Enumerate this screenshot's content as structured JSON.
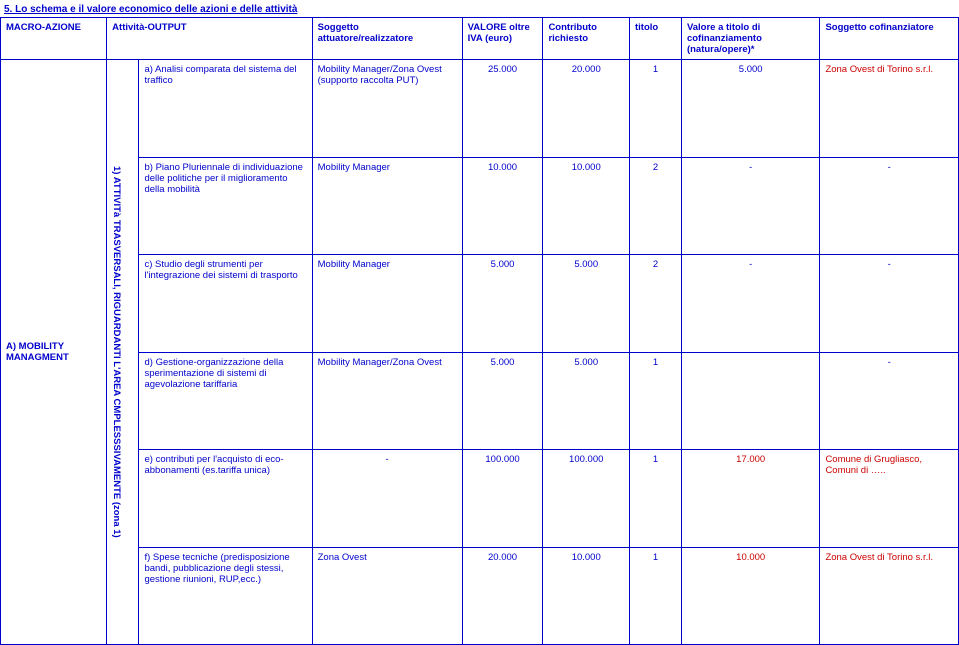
{
  "section_title": "5. Lo schema e il valore economico delle azioni e delle attività",
  "colors": {
    "text": "#0000CC",
    "accent_red": "#CC0000",
    "border": "#0000CC",
    "background": "#ffffff"
  },
  "headers": {
    "macro": "MACRO-AZIONE",
    "attivita": "Attività-OUTPUT",
    "soggetto_att": "Soggetto attuatore/realizzatore",
    "valore": "VALORE oltre IVA (euro)",
    "contributo": "Contributo richiesto",
    "titolo": "titolo",
    "valore_cofin": "Valore a titolo di cofinanziamento (natura/opere)*",
    "soggetto_cofin": "Soggetto cofinanziatore"
  },
  "macro_label": "A) MOBILITY MANAGMENT",
  "side_label": "1) ATTIVITà TRASVERSALI, RIGUARDANTI L'AREA CMPLESSSIVAMENTE (zona 1)",
  "rows": [
    {
      "activity": "a) Analisi comparata del sistema del traffico",
      "subject": "Mobility Manager/Zona Ovest (supporto raccolta PUT)",
      "valore": "25.000",
      "contributo": "20.000",
      "titolo": "1",
      "cofin": "5.000",
      "cofin_sog": "Zona Ovest di Torino s.r.l.",
      "cofin_red": true
    },
    {
      "activity": "b) Piano Pluriennale di individuazione delle politiche per il miglioramento della mobilità",
      "subject": "Mobility Manager",
      "valore": "10.000",
      "contributo": "10.000",
      "titolo": "2",
      "cofin": "-",
      "cofin_sog": "-",
      "cofin_red": false
    },
    {
      "activity": "c) Studio degli strumenti per l'integrazione dei sistemi di trasporto",
      "subject": "Mobility Manager",
      "valore": "5.000",
      "contributo": "5.000",
      "titolo": "2",
      "cofin": "-",
      "cofin_sog": "-",
      "cofin_red": false
    },
    {
      "activity": "d) Gestione-organizzazione della sperimentazione di sistemi di agevolazione tariffaria",
      "subject": "Mobility Manager/Zona Ovest",
      "valore": "5.000",
      "contributo": "5.000",
      "titolo": "1",
      "cofin": "",
      "cofin_sog": "-",
      "cofin_red": false
    },
    {
      "activity": "e) contributi per l'acquisto di eco-abbonamenti (es.tariffa unica)",
      "subject": "-",
      "valore": "100.000",
      "contributo": "100.000",
      "titolo": "1",
      "cofin": "17.000",
      "cofin_sog": "Comune di Grugliasco, Comuni di …..",
      "cofin_red": true,
      "cofin_val_red": true
    },
    {
      "activity": "f) Spese tecniche (predisposizione bandi, pubblicazione degli stessi, gestione riunioni, RUP,ecc.)",
      "subject": "Zona Ovest",
      "valore": "20.000",
      "contributo": "10.000",
      "titolo": "1",
      "cofin": "10.000",
      "cofin_sog": "Zona Ovest di Torino s.r.l.",
      "cofin_red": true,
      "cofin_val_red": true
    }
  ]
}
